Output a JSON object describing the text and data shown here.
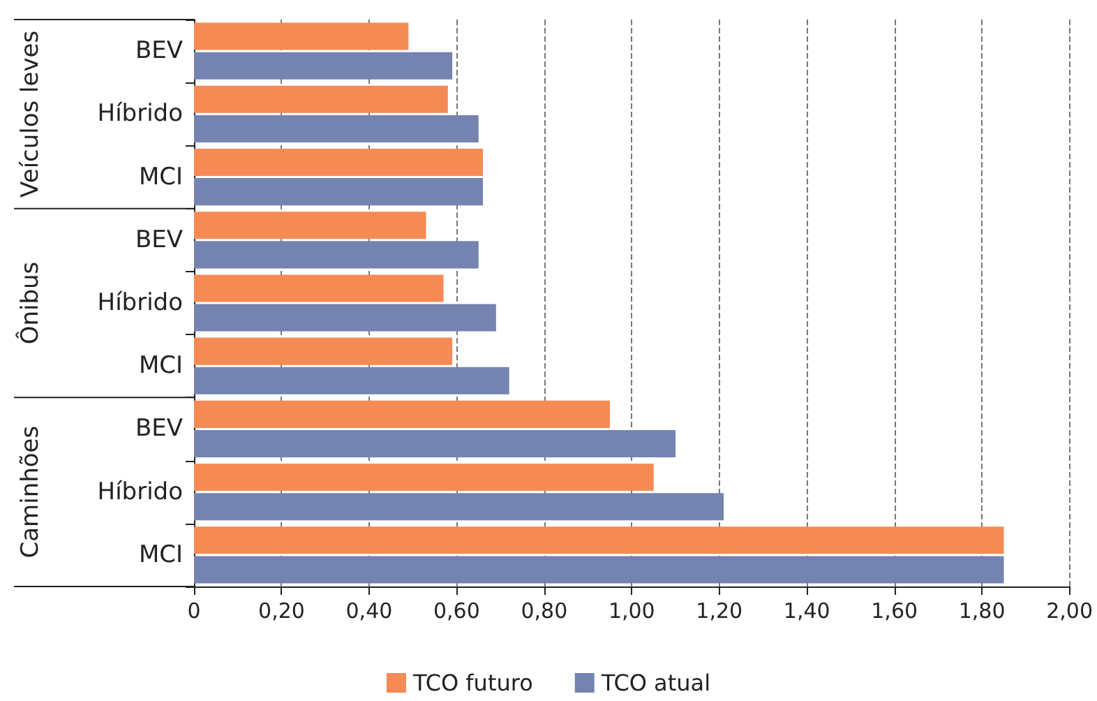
{
  "chart_data": {
    "type": "bar",
    "orientation": "horizontal",
    "categories": [
      "BEV",
      "Híbrido",
      "MCI",
      "BEV",
      "Híbrido",
      "MCI",
      "BEV",
      "Híbrido",
      "MCI"
    ],
    "series": [
      {
        "name": "TCO futuro",
        "color": "#f58a55",
        "values": [
          0.49,
          0.58,
          0.66,
          0.53,
          0.57,
          0.59,
          0.95,
          1.05,
          1.85
        ]
      },
      {
        "name": "TCO atual",
        "color": "#7483b0",
        "values": [
          0.59,
          0.65,
          0.66,
          0.65,
          0.69,
          0.72,
          1.1,
          1.21,
          1.85
        ]
      }
    ],
    "annotations": [
      "Veículos leves",
      "Ônibus",
      "Caminhões"
    ],
    "xlim": [
      0,
      2
    ],
    "xticks": [
      0,
      {
        "value": 0.2,
        "label": "0,20"
      },
      {
        "value": 0.4,
        "label": "0,40"
      },
      {
        "value": 0.6,
        "label": "0,60"
      },
      {
        "value": 0.8,
        "label": "0,80"
      },
      {
        "value": 1.0,
        "label": "1,00"
      },
      {
        "value": 1.2,
        "label": "1,20"
      },
      {
        "value": 1.4,
        "label": "1,40"
      },
      {
        "value": 1.6,
        "label": "1,60"
      },
      {
        "value": 1.8,
        "label": "1,80"
      },
      {
        "value": 2.0,
        "label": "2,00"
      }
    ],
    "grid": "x",
    "legend": "bottom"
  }
}
